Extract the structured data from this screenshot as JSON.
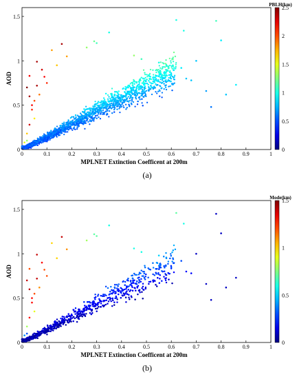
{
  "panels": [
    {
      "caption": "(a)",
      "chart_data": {
        "type": "scatter",
        "title": "",
        "xlabel": "MPLNET Extinction Coefficent at 200m",
        "ylabel": "AOD",
        "xlim": [
          0,
          1
        ],
        "ylim": [
          0,
          1.6
        ],
        "xticks": [
          "0",
          "0.1",
          "0.2",
          "0.3",
          "0.4",
          "0.5",
          "0.6",
          "0.7",
          "0.8",
          "0.9",
          "1"
        ],
        "yticks": [
          "0",
          "0.5",
          "1",
          "1.5"
        ],
        "colorbar": {
          "title": "PBLH(km)",
          "range": [
            0,
            2.5
          ],
          "ticks": [
            "0",
            "0.5",
            "1",
            "1.5",
            "2",
            "2.5"
          ],
          "colormap": "jet"
        },
        "points": [
          [
            0.02,
            0.1,
            1.3
          ],
          [
            0.03,
            0.28,
            2.3
          ],
          [
            0.02,
            0.7,
            2.5
          ],
          [
            0.03,
            0.83,
            2.2
          ],
          [
            0.06,
            0.99,
            2.4
          ],
          [
            0.05,
            0.55,
            2.0
          ],
          [
            0.08,
            0.9,
            2.3
          ],
          [
            0.16,
            1.19,
            2.4
          ],
          [
            0.06,
            0.72,
            2.4
          ],
          [
            0.09,
            0.82,
            2.2
          ],
          [
            0.04,
            0.45,
            2.1
          ],
          [
            0.12,
            1.12,
            1.8
          ],
          [
            0.03,
            0.6,
            2.4
          ],
          [
            0.05,
            0.35,
            1.6
          ],
          [
            0.01,
            0.08,
            1.5
          ],
          [
            0.02,
            0.18,
            1.7
          ],
          [
            0.07,
            0.62,
            1.9
          ],
          [
            0.1,
            0.75,
            2.1
          ],
          [
            0.14,
            0.95,
            1.7
          ],
          [
            0.18,
            1.05,
            1.8
          ],
          [
            0.04,
            0.5,
            2.2
          ],
          [
            0.62,
            1.46,
            1.0
          ],
          [
            0.78,
            1.45,
            1.1
          ],
          [
            0.8,
            1.23,
            0.9
          ],
          [
            0.65,
            1.34,
            1.0
          ],
          [
            0.35,
            1.32,
            1.0
          ],
          [
            0.7,
            1.0,
            0.8
          ],
          [
            0.86,
            0.73,
            0.9
          ],
          [
            0.74,
            0.66,
            0.7
          ],
          [
            0.82,
            0.62,
            0.8
          ],
          [
            0.76,
            0.48,
            0.6
          ],
          [
            0.29,
            1.22,
            1.2
          ],
          [
            0.26,
            1.15,
            1.3
          ],
          [
            0.3,
            1.2,
            1.1
          ],
          [
            0.45,
            1.06,
            1.3
          ],
          [
            0.48,
            1.02,
            1.1
          ],
          [
            0.55,
            0.98,
            1.0
          ],
          [
            0.58,
            0.95,
            1.0
          ],
          [
            0.64,
            0.92,
            0.9
          ],
          [
            0.6,
            0.85,
            0.9
          ],
          [
            0.66,
            0.8,
            0.8
          ],
          [
            0.68,
            0.78,
            0.8
          ]
        ]
      }
    },
    {
      "caption": "(b)",
      "chart_data": {
        "type": "scatter",
        "title": "",
        "xlabel": "MPLNET Extinction Coefficent at 200m",
        "ylabel": "AOD",
        "xlim": [
          0,
          1
        ],
        "ylim": [
          0,
          1.6
        ],
        "xticks": [
          "0",
          "0.1",
          "0.2",
          "0.3",
          "0.4",
          "0.5",
          "0.6",
          "0.7",
          "0.8",
          "0.9",
          "1"
        ],
        "yticks": [
          "0",
          "0.5",
          "1",
          "1.5"
        ],
        "colorbar": {
          "title": "Mode(km)",
          "range": [
            0,
            1.5
          ],
          "ticks": [
            "0",
            "0.5",
            "1",
            "1.5"
          ],
          "colormap": "jet"
        },
        "points": [
          [
            0.02,
            0.1,
            0.3
          ],
          [
            0.03,
            0.28,
            1.3
          ],
          [
            0.02,
            0.7,
            1.4
          ],
          [
            0.03,
            0.83,
            1.2
          ],
          [
            0.06,
            0.99,
            1.4
          ],
          [
            0.05,
            0.55,
            1.2
          ],
          [
            0.08,
            0.9,
            1.3
          ],
          [
            0.16,
            1.19,
            1.4
          ],
          [
            0.06,
            0.72,
            1.4
          ],
          [
            0.09,
            0.82,
            1.2
          ],
          [
            0.04,
            0.45,
            1.3
          ],
          [
            0.12,
            1.12,
            1.0
          ],
          [
            0.03,
            0.6,
            1.4
          ],
          [
            0.05,
            0.35,
            0.9
          ],
          [
            0.01,
            0.08,
            0.4
          ],
          [
            0.02,
            0.18,
            0.8
          ],
          [
            0.07,
            0.62,
            1.1
          ],
          [
            0.1,
            0.75,
            1.2
          ],
          [
            0.14,
            0.95,
            1.0
          ],
          [
            0.18,
            1.05,
            1.1
          ],
          [
            0.04,
            0.5,
            1.3
          ],
          [
            0.62,
            1.46,
            0.7
          ],
          [
            0.78,
            1.45,
            0.1
          ],
          [
            0.8,
            1.23,
            0.1
          ],
          [
            0.65,
            1.34,
            0.6
          ],
          [
            0.35,
            1.32,
            0.6
          ],
          [
            0.7,
            1.0,
            0.1
          ],
          [
            0.86,
            0.73,
            0.1
          ],
          [
            0.74,
            0.66,
            0.1
          ],
          [
            0.82,
            0.62,
            0.1
          ],
          [
            0.76,
            0.48,
            0.1
          ],
          [
            0.29,
            1.22,
            0.7
          ],
          [
            0.26,
            1.15,
            0.8
          ],
          [
            0.3,
            1.2,
            0.7
          ],
          [
            0.45,
            1.06,
            0.6
          ],
          [
            0.48,
            1.02,
            0.6
          ],
          [
            0.55,
            0.98,
            0.5
          ],
          [
            0.58,
            0.95,
            0.4
          ],
          [
            0.64,
            0.92,
            0.3
          ],
          [
            0.6,
            0.85,
            0.3
          ],
          [
            0.66,
            0.8,
            0.2
          ],
          [
            0.68,
            0.78,
            0.2
          ]
        ]
      }
    }
  ]
}
